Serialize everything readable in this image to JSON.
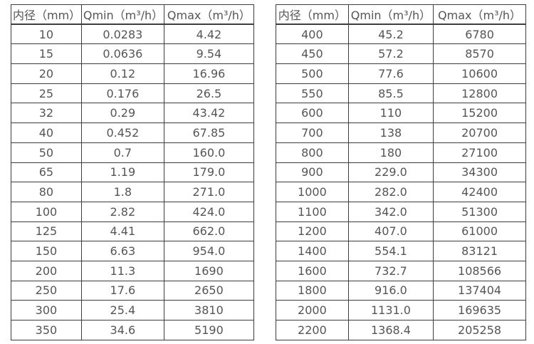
{
  "page": {
    "background": "#ffffff",
    "text_color": "#555555",
    "border_color": "#3d3d3d"
  },
  "columns": [
    "内径（mm）",
    "Qmin（m³/h）",
    "Qmax（m³/h）"
  ],
  "tables": [
    {
      "rows": [
        [
          "10",
          "0.0283",
          "4.42"
        ],
        [
          "15",
          "0.0636",
          "9.54"
        ],
        [
          "20",
          "0.12",
          "16.96"
        ],
        [
          "25",
          "0.176",
          "26.5"
        ],
        [
          "32",
          "0.29",
          "43.42"
        ],
        [
          "40",
          "0.452",
          "67.85"
        ],
        [
          "50",
          "0.7",
          "160.0"
        ],
        [
          "65",
          "1.19",
          "179.0"
        ],
        [
          "80",
          "1.8",
          "271.0"
        ],
        [
          "100",
          "2.82",
          "424.0"
        ],
        [
          "125",
          "4.41",
          "662.0"
        ],
        [
          "150",
          "6.63",
          "954.0"
        ],
        [
          "200",
          "11.3",
          "1690"
        ],
        [
          "250",
          "17.6",
          "2650"
        ],
        [
          "300",
          "25.4",
          "3810"
        ],
        [
          "350",
          "34.6",
          "5190"
        ]
      ]
    },
    {
      "rows": [
        [
          "400",
          "45.2",
          "6780"
        ],
        [
          "450",
          "57.2",
          "8570"
        ],
        [
          "500",
          "77.6",
          "10600"
        ],
        [
          "550",
          "85.5",
          "12800"
        ],
        [
          "600",
          "110",
          "15200"
        ],
        [
          "700",
          "138",
          "20700"
        ],
        [
          "800",
          "180",
          "27100"
        ],
        [
          "900",
          "229.0",
          "34300"
        ],
        [
          "1000",
          "282.0",
          "42400"
        ],
        [
          "1100",
          "342.0",
          "51300"
        ],
        [
          "1200",
          "407.0",
          "61000"
        ],
        [
          "1400",
          "554.1",
          "83121"
        ],
        [
          "1600",
          "732.7",
          "108566"
        ],
        [
          "1800",
          "916.0",
          "137404"
        ],
        [
          "2000",
          "1131.0",
          "169635"
        ],
        [
          "2200",
          "1368.4",
          "205258"
        ]
      ]
    }
  ]
}
